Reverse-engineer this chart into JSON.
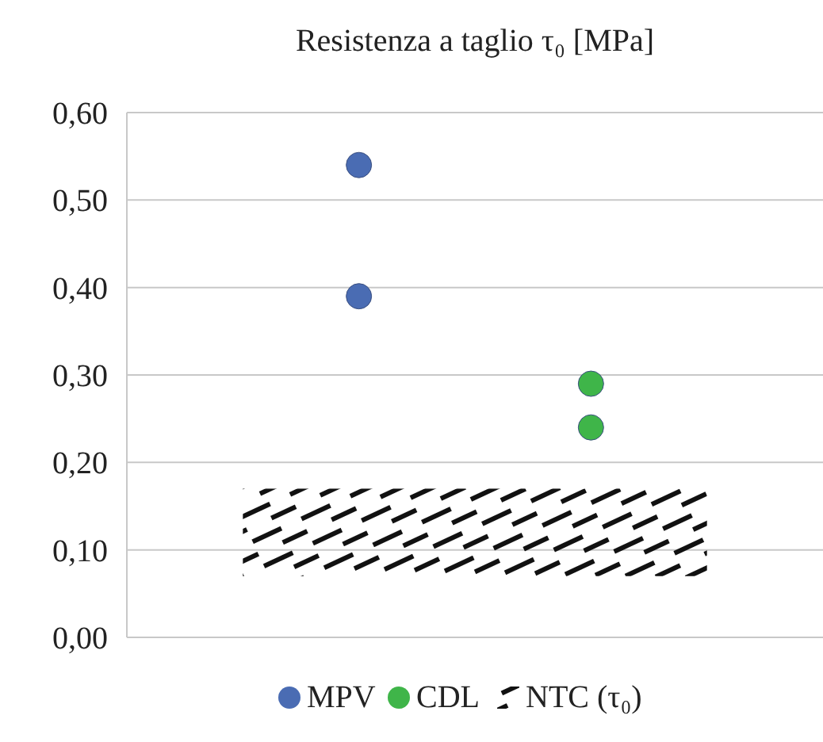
{
  "chart_data": {
    "type": "scatter",
    "title": "Resistenza a taglio τ₀ [MPa]",
    "categories": [
      null,
      null
    ],
    "ylim": [
      0,
      0.6
    ],
    "yticks": [
      {
        "value": 0,
        "label": "0,00"
      },
      {
        "value": 0.1,
        "label": "0,10"
      },
      {
        "value": 0.2,
        "label": "0,20"
      },
      {
        "value": 0.3,
        "label": "0,30"
      },
      {
        "value": 0.4,
        "label": "0,40"
      },
      {
        "value": 0.5,
        "label": "0,50"
      },
      {
        "value": 0.6,
        "label": "0,60"
      }
    ],
    "tick_labels": "y",
    "grid": "y",
    "legend": "bottom",
    "marker": "circle",
    "series": [
      {
        "name": "MPV",
        "color": "#4a6cb3",
        "values": [
          0.54,
          null
        ]
      },
      {
        "color": "#4a6cb3",
        "values": [
          0.39,
          null
        ]
      },
      {
        "name": "CDL",
        "color": "#3fb549",
        "values": [
          null,
          0.29
        ]
      },
      {
        "color": "#3fb549",
        "values": [
          null,
          0.24
        ]
      }
    ],
    "bands": [
      {
        "axis": "y",
        "from": 0.07,
        "to": 0.17,
        "label": "NTC (τ₀)",
        "color": "#111111"
      }
    ]
  }
}
